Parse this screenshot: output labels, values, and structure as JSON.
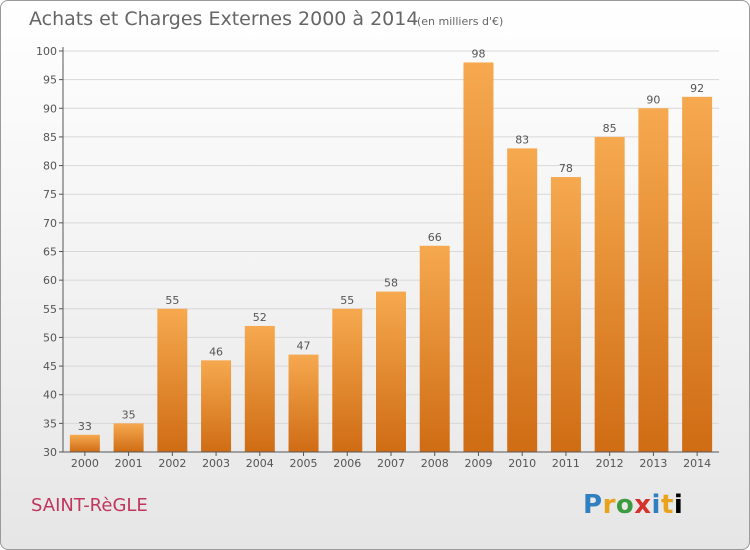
{
  "header": {
    "title": "Achats et Charges Externes 2000 à 2014",
    "unit": "(en milliers d'€)"
  },
  "footer": {
    "commune": "SAINT-RèGLE",
    "logo": [
      "P",
      "r",
      "o",
      "x",
      "i",
      "t",
      "i"
    ]
  },
  "colors": {
    "bar_top": "#f6a94f",
    "bar_bottom": "#cf6c14",
    "grid": "#d8d8d8",
    "axis": "#555555",
    "text": "#555555"
  },
  "chart_data": {
    "type": "bar",
    "categories": [
      "2000",
      "2001",
      "2002",
      "2003",
      "2004",
      "2005",
      "2006",
      "2007",
      "2008",
      "2009",
      "2010",
      "2011",
      "2012",
      "2013",
      "2014"
    ],
    "values": [
      33,
      35,
      55,
      46,
      52,
      47,
      55,
      58,
      66,
      98,
      83,
      78,
      85,
      90,
      92
    ],
    "data_labels": [
      "33",
      "35",
      "55",
      "46",
      "52",
      "47",
      "55",
      "58",
      "66",
      "98",
      "83",
      "78",
      "85",
      "90",
      "92"
    ],
    "title": "Achats et Charges Externes 2000 à 2014",
    "unit": "(en milliers d'€)",
    "xlabel": "",
    "ylabel": "",
    "ylim": [
      30,
      100
    ],
    "yticks": [
      30,
      35,
      40,
      45,
      50,
      55,
      60,
      65,
      70,
      75,
      80,
      85,
      90,
      95,
      100
    ],
    "grid": true,
    "legend": "none"
  }
}
